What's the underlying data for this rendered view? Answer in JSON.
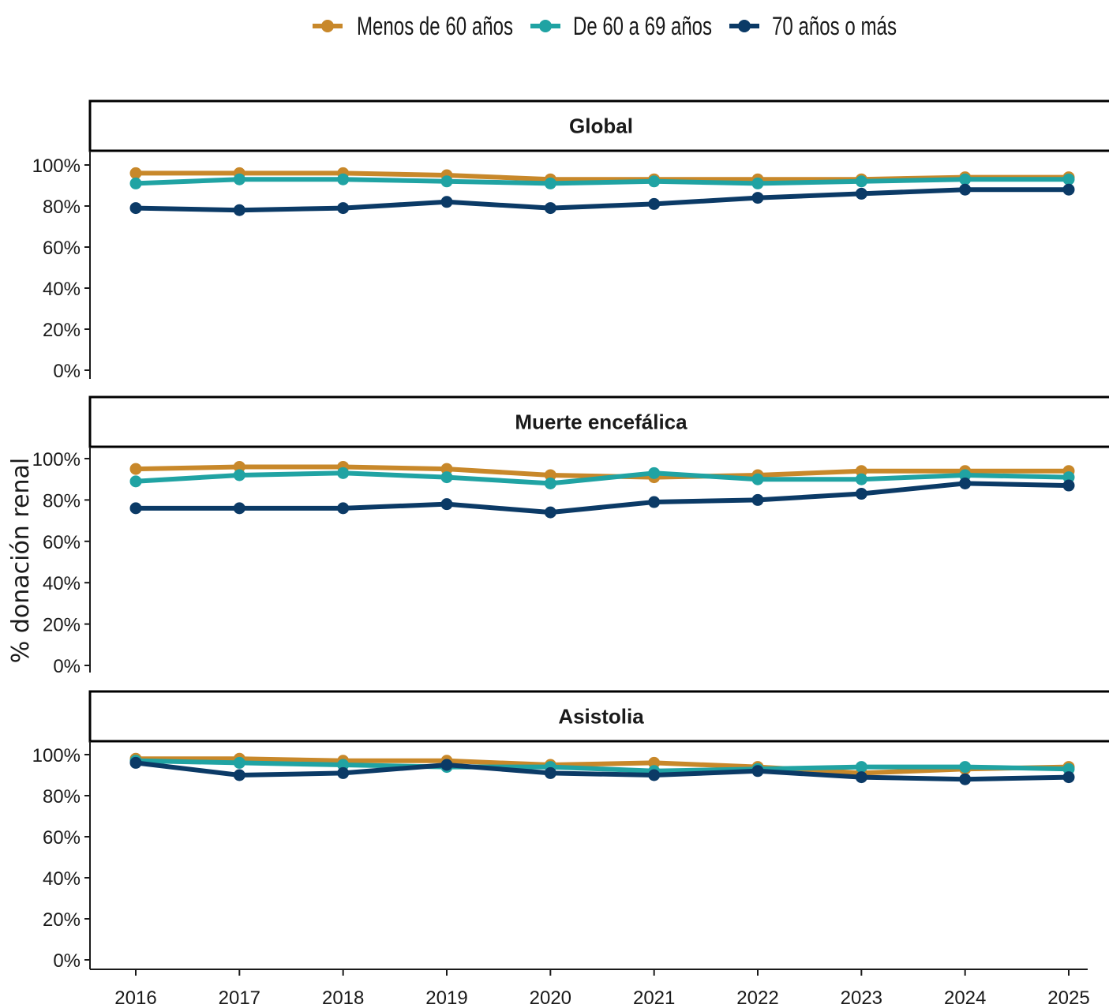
{
  "chart_data": {
    "type": "line",
    "ylabel": "% donación renal",
    "x": [
      "2016",
      "2017",
      "2018",
      "2019",
      "2020",
      "2021",
      "2022",
      "2023",
      "2024",
      "2025"
    ],
    "y_ticks": [
      "0%",
      "20%",
      "40%",
      "60%",
      "80%",
      "100%"
    ],
    "ylim": [
      0,
      100
    ],
    "legend_position": "top",
    "grid": false,
    "legend": [
      {
        "name": "Menos de 60 años",
        "color": "#C8882A"
      },
      {
        "name": "De 60 a 69 años",
        "color": "#20A3A3"
      },
      {
        "name": "70 años o más",
        "color": "#0B3A66"
      }
    ],
    "panels": [
      {
        "title": "Global",
        "series": [
          {
            "name": "Menos de 60 años",
            "values": [
              96,
              96,
              96,
              95,
              93,
              93,
              93,
              93,
              94,
              94
            ]
          },
          {
            "name": "De 60 a 69 años",
            "values": [
              91,
              93,
              93,
              92,
              91,
              92,
              91,
              92,
              93,
              93
            ]
          },
          {
            "name": "70 años o más",
            "values": [
              79,
              78,
              79,
              82,
              79,
              81,
              84,
              86,
              88,
              88
            ]
          }
        ]
      },
      {
        "title": "Muerte encefálica",
        "series": [
          {
            "name": "Menos de 60 años",
            "values": [
              95,
              96,
              96,
              95,
              92,
              91,
              92,
              94,
              94,
              94
            ]
          },
          {
            "name": "De 60 a 69 años",
            "values": [
              89,
              92,
              93,
              91,
              88,
              93,
              90,
              90,
              92,
              91
            ]
          },
          {
            "name": "70 años o más",
            "values": [
              76,
              76,
              76,
              78,
              74,
              79,
              80,
              83,
              88,
              87
            ]
          }
        ]
      },
      {
        "title": "Asistolia",
        "series": [
          {
            "name": "Menos de 60 años",
            "values": [
              98,
              98,
              97,
              97,
              95,
              96,
              94,
              91,
              93,
              94
            ]
          },
          {
            "name": "De 60 a 69 años",
            "values": [
              97,
              96,
              95,
              94,
              94,
              92,
              93,
              94,
              94,
              93
            ]
          },
          {
            "name": "70 años o más",
            "values": [
              96,
              90,
              91,
              95,
              91,
              90,
              92,
              89,
              88,
              89
            ]
          }
        ]
      }
    ]
  }
}
